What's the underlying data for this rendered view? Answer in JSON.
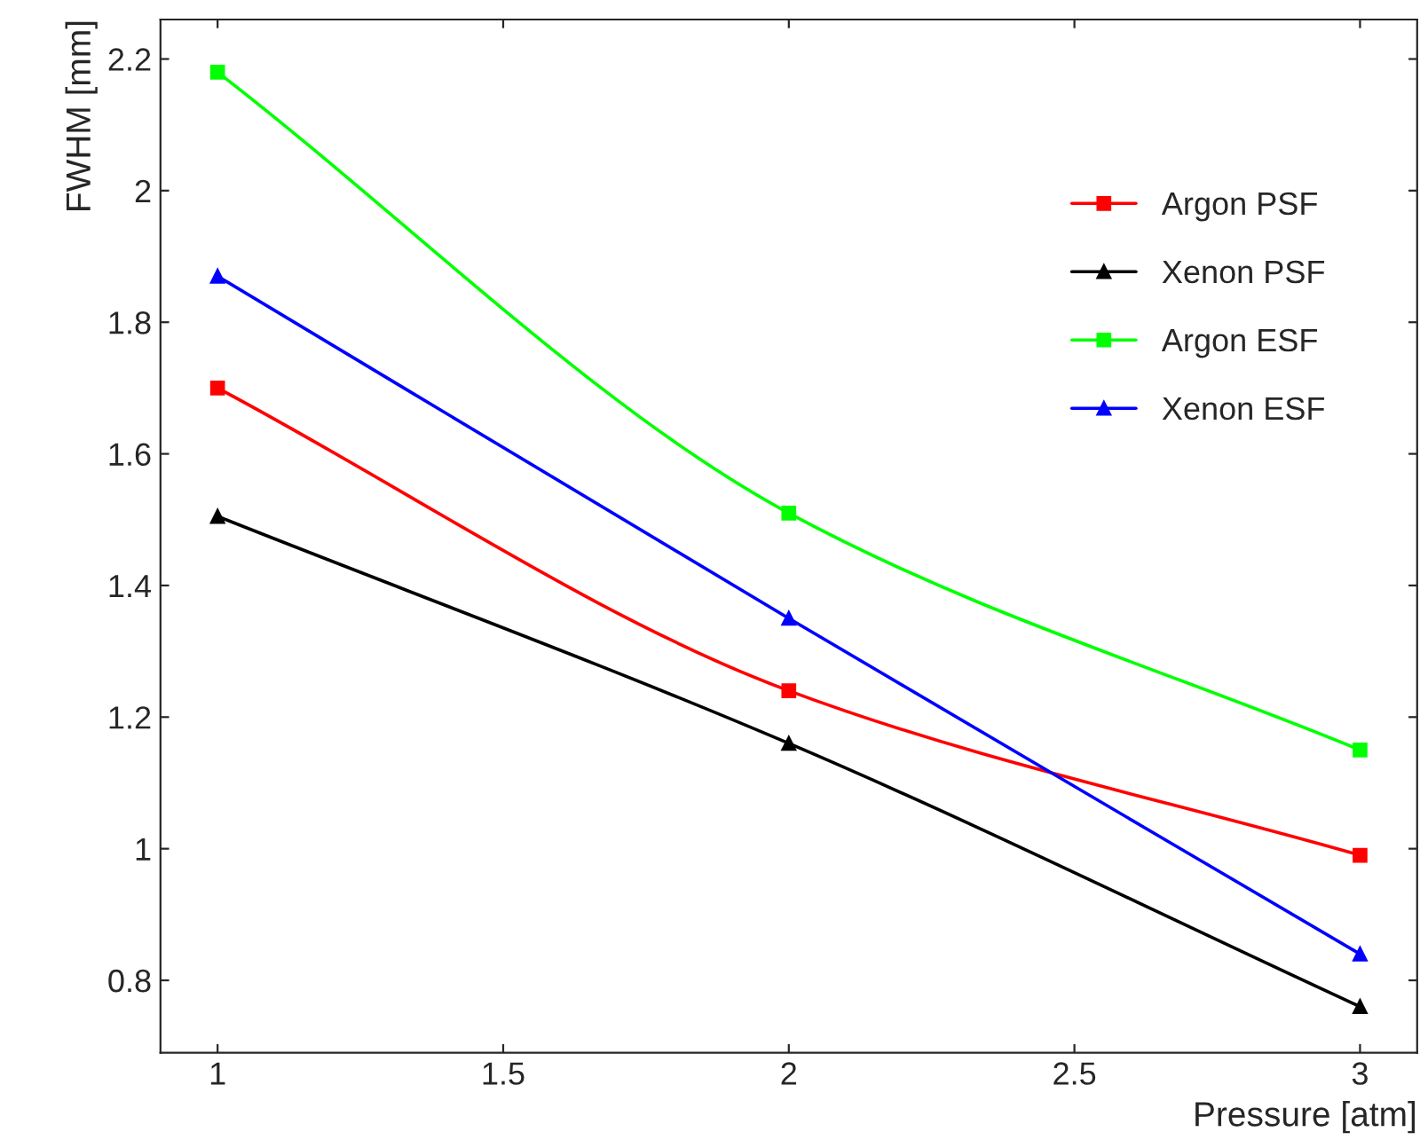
{
  "chart_data": {
    "type": "line",
    "xlabel": "Pressure [atm]",
    "ylabel": "FWHM [mm]",
    "x": [
      1,
      2,
      3
    ],
    "series": [
      {
        "name": "Argon PSF",
        "color": "#ff0000",
        "values": [
          1.7,
          1.24,
          0.99
        ],
        "marker": "square"
      },
      {
        "name": "Xenon PSF",
        "color": "#000000",
        "values": [
          1.505,
          1.16,
          0.76
        ],
        "marker": "triangle"
      },
      {
        "name": "Argon ESF",
        "color": "#00ff00",
        "values": [
          2.18,
          1.51,
          1.15
        ],
        "marker": "square"
      },
      {
        "name": "Xenon ESF",
        "color": "#0000ff",
        "values": [
          1.87,
          1.35,
          0.84
        ],
        "marker": "triangle"
      }
    ],
    "xlim": [
      0.9,
      3.1
    ],
    "ylim": [
      0.69,
      2.26
    ],
    "xticks": [
      1,
      {
        "value": 1.5,
        "label": "1.5"
      },
      2,
      {
        "value": 2.5,
        "label": "2.5"
      },
      3
    ],
    "yticks": [
      0.8,
      1,
      1.2,
      1.4,
      1.6,
      1.8,
      2,
      2.2
    ],
    "grid": false,
    "legend": "right",
    "line_style": "solid"
  }
}
